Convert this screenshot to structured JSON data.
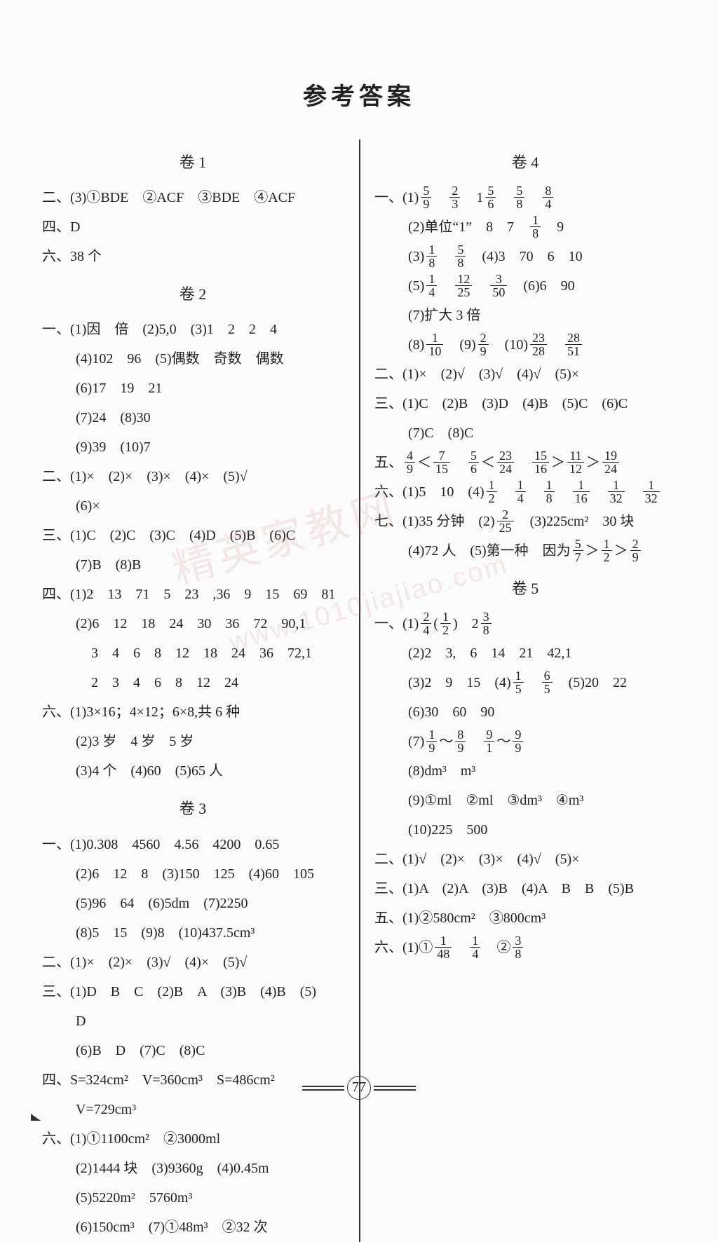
{
  "page_title": "参考答案",
  "page_number": "77",
  "watermark_main": "精英家教网",
  "watermark_url": "www.1010jiajiao.com",
  "left": {
    "sec1_title": "卷 1",
    "s1_l1": "二、(3)①BDE　②ACF　③BDE　④ACF",
    "s1_l2": "四、D",
    "s1_l3": "六、38 个",
    "sec2_title": "卷 2",
    "s2_l1": "一、(1)因　倍　(2)5,0　(3)1　2　2　4",
    "s2_l2": "(4)102　96　(5)偶数　奇数　偶数",
    "s2_l3": "(6)17　19　21",
    "s2_l4": "(7)24　(8)30",
    "s2_l5": "(9)39　(10)7",
    "s2_l6": "二、(1)×　(2)×　(3)×　(4)×　(5)√",
    "s2_l7": "(6)×",
    "s2_l8": "三、(1)C　(2)C　(3)C　(4)D　(5)B　(6)C",
    "s2_l9": "(7)B　(8)B",
    "s2_l10": "四、(1)2　13　71　5　23　,36　9　15　69　81",
    "s2_l11": "(2)6　12　18　24　30　36　72　90,1",
    "s2_l12": "3　4　6　8　12　18　24　36　72,1",
    "s2_l13": "2　3　4　6　8　12　24",
    "s2_l14": "六、(1)3×16；4×12；6×8,共 6 种",
    "s2_l15": "(2)3 岁　4 岁　5 岁",
    "s2_l16": "(3)4 个　(4)60　(5)65 人",
    "sec3_title": "卷 3",
    "s3_l1": "一、(1)0.308　4560　4.56　4200　0.65",
    "s3_l2": "(2)6　12　8　(3)150　125　(4)60　105",
    "s3_l3": "(5)96　64　(6)5dm　(7)2250",
    "s3_l4": "(8)5　15　(9)8　(10)437.5cm³",
    "s3_l5": "二、(1)×　(2)×　(3)√　(4)×　(5)√",
    "s3_l6": "三、(1)D　B　C　(2)B　A　(3)B　(4)B　(5)",
    "s3_l6b": "D",
    "s3_l7": "(6)B　D　(7)C　(8)C",
    "s3_l8": "四、S=324cm²　V=360cm³　S=486cm²",
    "s3_l9": "V=729cm³",
    "s3_l10": "六、(1)①1100cm²　②3000ml",
    "s3_l11": "(2)1444 块　(3)9360g　(4)0.45m",
    "s3_l12": "(5)5220m²　5760m³",
    "s3_l13": "(6)150cm³　(7)①48m³　②32 次"
  },
  "right": {
    "sec4_title": "卷 4",
    "s4_l1a": "一、(1)",
    "s4_f1n": "5",
    "s4_f1d": "9",
    "s4_f2n": "2",
    "s4_f2d": "3",
    "s4_l1b": "　1",
    "s4_f3n": "5",
    "s4_f3d": "6",
    "s4_f4n": "5",
    "s4_f4d": "8",
    "s4_f5n": "8",
    "s4_f5d": "4",
    "s4_l2a": "(2)单位“1”　8　7　",
    "s4_f6n": "1",
    "s4_f6d": "8",
    "s4_l2b": "　9",
    "s4_l3a": "(3)",
    "s4_f7n": "1",
    "s4_f7d": "8",
    "s4_f8n": "5",
    "s4_f8d": "8",
    "s4_l3b": "　(4)3　70　6　10",
    "s4_l4a": "(5)",
    "s4_f9n": "1",
    "s4_f9d": "4",
    "s4_f10n": "12",
    "s4_f10d": "25",
    "s4_f11n": "3",
    "s4_f11d": "50",
    "s4_l4b": "　(6)6　90",
    "s4_l5": "(7)扩大 3 倍",
    "s4_l6a": "(8)",
    "s4_f12n": "1",
    "s4_f12d": "10",
    "s4_l6b": "　(9)",
    "s4_f13n": "2",
    "s4_f13d": "9",
    "s4_l6c": "　(10)",
    "s4_f14n": "23",
    "s4_f14d": "28",
    "s4_f15n": "28",
    "s4_f15d": "51",
    "s4_l7": "二、(1)×　(2)√　(3)√　(4)√　(5)×",
    "s4_l8": "三、(1)C　(2)B　(3)D　(4)B　(5)C　(6)C",
    "s4_l9": "(7)C　(8)C",
    "s4_l10a": "五、",
    "s4_f16n": "4",
    "s4_f16d": "9",
    "s4_l10b": "＜",
    "s4_f17n": "7",
    "s4_f17d": "15",
    "s4_l10c": "　",
    "s4_f18n": "5",
    "s4_f18d": "6",
    "s4_l10d": "＜",
    "s4_f19n": "23",
    "s4_f19d": "24",
    "s4_l10e": "　",
    "s4_f20n": "15",
    "s4_f20d": "16",
    "s4_l10f": "＞",
    "s4_f21n": "11",
    "s4_f21d": "12",
    "s4_l10g": "＞",
    "s4_f22n": "19",
    "s4_f22d": "24",
    "s4_l11a": "六、(1)5　10　(4)",
    "s4_f23n": "1",
    "s4_f23d": "2",
    "s4_f24n": "1",
    "s4_f24d": "4",
    "s4_f25n": "1",
    "s4_f25d": "8",
    "s4_f26n": "1",
    "s4_f26d": "16",
    "s4_f27n": "1",
    "s4_f27d": "32",
    "s4_f28n": "1",
    "s4_f28d": "32",
    "s4_l12a": "七、(1)35 分钟　(2)",
    "s4_f29n": "2",
    "s4_f29d": "25",
    "s4_l12b": "　(3)225cm²　30 块",
    "s4_l13a": "(4)72 人　(5)第一种　因为",
    "s4_f30n": "5",
    "s4_f30d": "7",
    "s4_l13b": "＞",
    "s4_f31n": "1",
    "s4_f31d": "2",
    "s4_l13c": "＞",
    "s4_f32n": "2",
    "s4_f32d": "9",
    "sec5_title": "卷 5",
    "s5_l1a": "一、(1)",
    "s5_f1n": "2",
    "s5_f1d": "4",
    "s5_l1b": "(",
    "s5_f2n": "1",
    "s5_f2d": "2",
    "s5_l1c": ")　2",
    "s5_f3n": "3",
    "s5_f3d": "8",
    "s5_l2": "(2)2　3,　6　14　21　42,1",
    "s5_l3a": "(3)2　9　15　(4)",
    "s5_f4n": "1",
    "s5_f4d": "5",
    "s5_f5n": "6",
    "s5_f5d": "5",
    "s5_l3b": "　(5)20　22",
    "s5_l4": "(6)30　60　90",
    "s5_l5a": "(7)",
    "s5_f6n": "1",
    "s5_f6d": "9",
    "s5_l5b": "～",
    "s5_f7n": "8",
    "s5_f7d": "9",
    "s5_l5c": "　",
    "s5_f8n": "9",
    "s5_f8d": "1",
    "s5_l5d": "～",
    "s5_f9n": "9",
    "s5_f9d": "9",
    "s5_l6": "(8)dm³　m³",
    "s5_l7": "(9)①ml　②ml　③dm³　④m³",
    "s5_l8": "(10)225　500",
    "s5_l9": "二、(1)√　(2)×　(3)×　(4)√　(5)×",
    "s5_l10": "三、(1)A　(2)A　(3)B　(4)A　B　B　(5)B",
    "s5_l11": "五、(1)②580cm²　③800cm³",
    "s5_l12a": "六、(1)①",
    "s5_f10n": "1",
    "s5_f10d": "48",
    "s5_f11n": "1",
    "s5_f11d": "4",
    "s5_l12b": "　②",
    "s5_f12n": "3",
    "s5_f12d": "8"
  }
}
